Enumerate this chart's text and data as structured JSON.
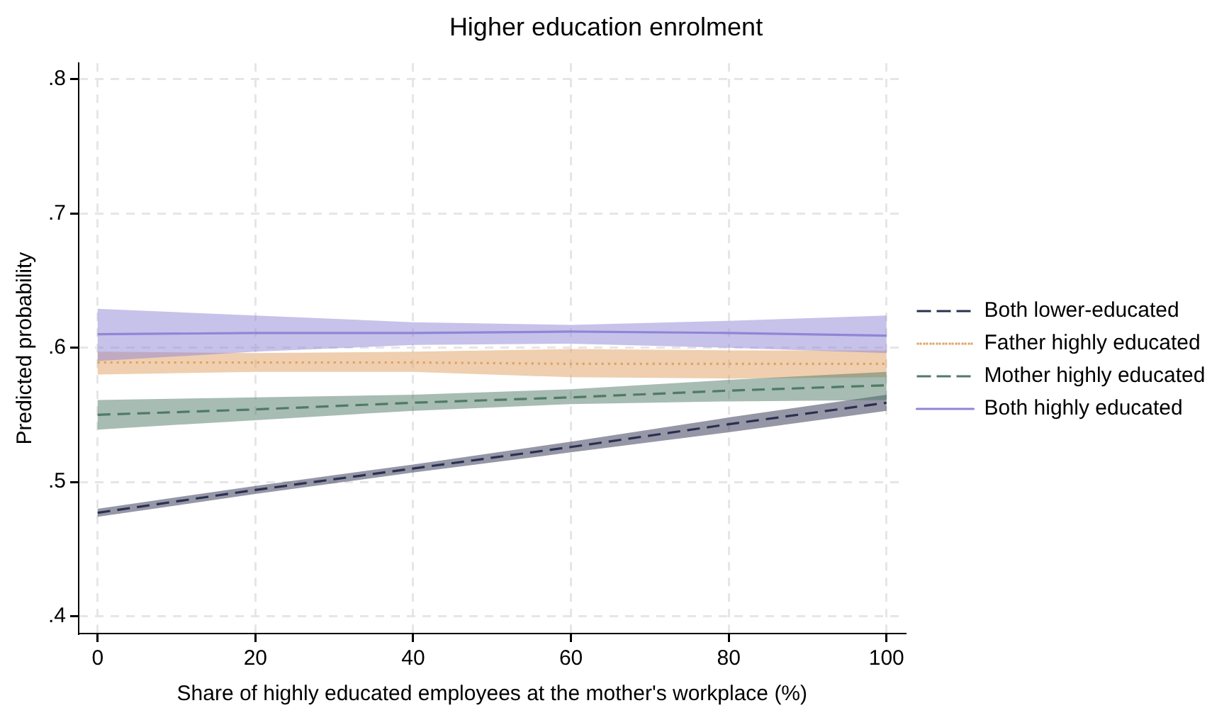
{
  "chart_data": {
    "type": "line",
    "title": "Higher education enrolment",
    "xlabel": "Share of highly educated employees at the mother's workplace (%)",
    "ylabel": "Predicted probability",
    "x": [
      0,
      20,
      40,
      60,
      80,
      100
    ],
    "series": [
      {
        "name": "Both lower-educated",
        "color": "#2b3050",
        "line_style": "dashed",
        "values": [
          0.477,
          0.494,
          0.51,
          0.526,
          0.543,
          0.559
        ],
        "lower": [
          0.474,
          0.491,
          0.507,
          0.522,
          0.537,
          0.553
        ],
        "upper": [
          0.48,
          0.497,
          0.513,
          0.53,
          0.548,
          0.565
        ]
      },
      {
        "name": "Father highly educated",
        "color": "#e0a060",
        "line_style": "dotted",
        "values": [
          0.589,
          0.589,
          0.589,
          0.588,
          0.588,
          0.588
        ],
        "lower": [
          0.58,
          0.582,
          0.582,
          0.578,
          0.577,
          0.578
        ],
        "upper": [
          0.597,
          0.596,
          0.597,
          0.599,
          0.598,
          0.598
        ]
      },
      {
        "name": "Mother highly educated",
        "color": "#4f7a66",
        "line_style": "dashed",
        "values": [
          0.55,
          0.554,
          0.559,
          0.563,
          0.568,
          0.572
        ],
        "lower": [
          0.539,
          0.546,
          0.553,
          0.558,
          0.56,
          0.561
        ],
        "upper": [
          0.561,
          0.563,
          0.565,
          0.569,
          0.576,
          0.582
        ]
      },
      {
        "name": "Both highly educated",
        "color": "#8f86d6",
        "line_style": "solid",
        "values": [
          0.61,
          0.611,
          0.611,
          0.612,
          0.611,
          0.609
        ],
        "lower": [
          0.59,
          0.597,
          0.602,
          0.603,
          0.6,
          0.596
        ],
        "upper": [
          0.629,
          0.624,
          0.619,
          0.617,
          0.62,
          0.624
        ]
      }
    ],
    "xlim": [
      -2.4,
      102.4
    ],
    "xticks": [
      0,
      20,
      40,
      60,
      80,
      100
    ],
    "ylim": [
      0.387,
      0.812
    ],
    "yticks": [
      {
        "value": 0.4,
        "label": ".4"
      },
      {
        "value": 0.5,
        "label": ".5"
      },
      {
        "value": 0.6,
        "label": ".6"
      },
      {
        "value": 0.7,
        "label": ".7"
      },
      {
        "value": 0.8,
        "label": ".8"
      }
    ],
    "grid": true,
    "legend": "right",
    "marker": "none"
  }
}
